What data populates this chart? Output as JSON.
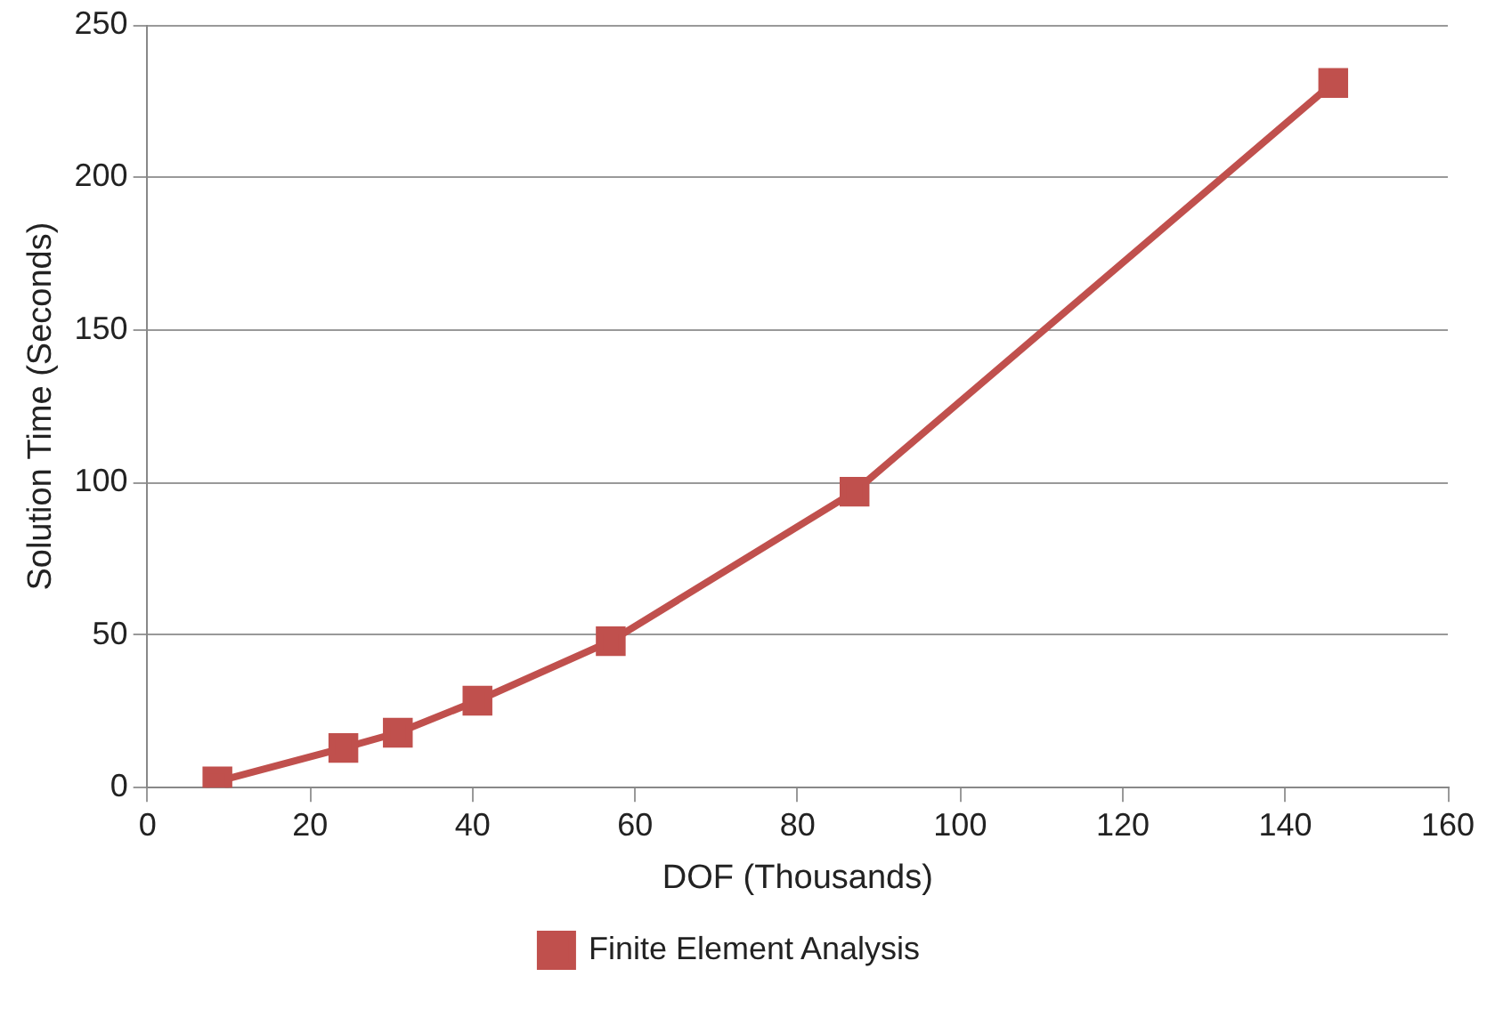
{
  "chart_data": {
    "type": "line",
    "xlabel": "DOF (Thousands)",
    "ylabel": "Solution Time (Seconds)",
    "x": [
      8.6,
      24.1,
      30.8,
      40.6,
      57.0,
      87.0,
      145.9
    ],
    "series": [
      {
        "name": "Finite Element Analysis",
        "color": "#c0504d",
        "values": [
          2,
          13,
          18,
          28.5,
          48,
          97,
          231
        ]
      }
    ],
    "xlim": [
      0,
      160
    ],
    "xticks": [
      0,
      20,
      40,
      60,
      80,
      100,
      120,
      140,
      160
    ],
    "ylim": [
      0,
      250
    ],
    "yticks": [
      0,
      50,
      100,
      150,
      200,
      250
    ],
    "grid": "y",
    "legend": "bottom",
    "marker": "square",
    "line_style": "solid"
  }
}
